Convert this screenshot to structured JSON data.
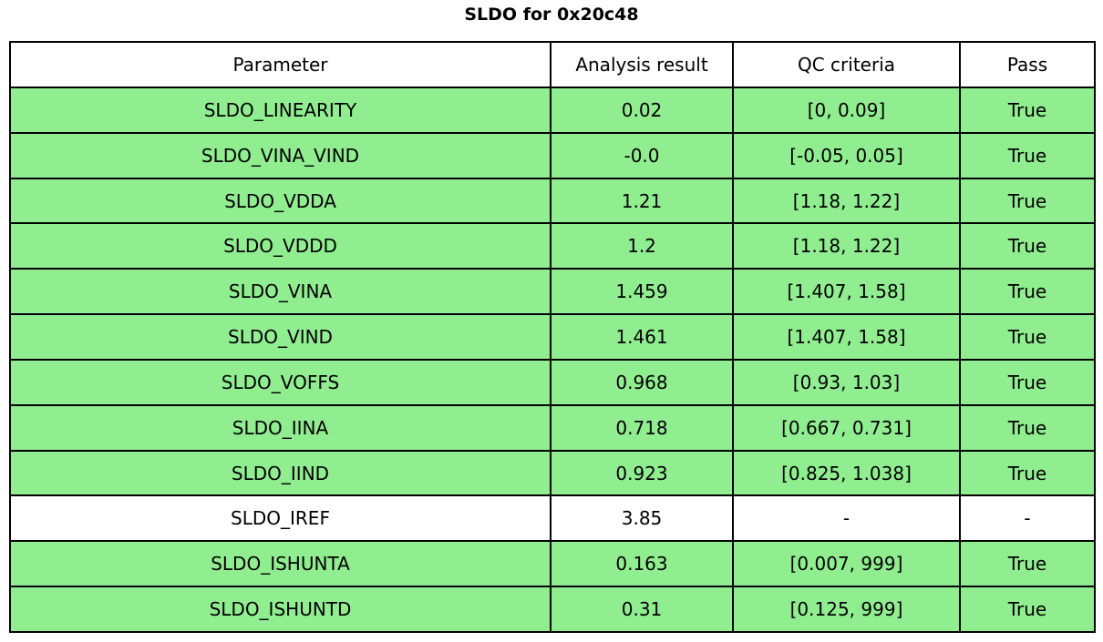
{
  "title": "SLDO for 0x20c48",
  "chart_data": {
    "type": "table",
    "title": "SLDO for 0x20c48",
    "columns": [
      "Parameter",
      "Analysis result",
      "QC criteria",
      "Pass"
    ],
    "rows": [
      {
        "parameter": "SLDO_LINEARITY",
        "result": "0.02",
        "qc": "[0, 0.09]",
        "pass": "True",
        "highlighted": true
      },
      {
        "parameter": "SLDO_VINA_VIND",
        "result": "-0.0",
        "qc": "[-0.05, 0.05]",
        "pass": "True",
        "highlighted": true
      },
      {
        "parameter": "SLDO_VDDA",
        "result": "1.21",
        "qc": "[1.18, 1.22]",
        "pass": "True",
        "highlighted": true
      },
      {
        "parameter": "SLDO_VDDD",
        "result": "1.2",
        "qc": "[1.18, 1.22]",
        "pass": "True",
        "highlighted": true
      },
      {
        "parameter": "SLDO_VINA",
        "result": "1.459",
        "qc": "[1.407, 1.58]",
        "pass": "True",
        "highlighted": true
      },
      {
        "parameter": "SLDO_VIND",
        "result": "1.461",
        "qc": "[1.407, 1.58]",
        "pass": "True",
        "highlighted": true
      },
      {
        "parameter": "SLDO_VOFFS",
        "result": "0.968",
        "qc": "[0.93, 1.03]",
        "pass": "True",
        "highlighted": true
      },
      {
        "parameter": "SLDO_IINA",
        "result": "0.718",
        "qc": "[0.667, 0.731]",
        "pass": "True",
        "highlighted": true
      },
      {
        "parameter": "SLDO_IIND",
        "result": "0.923",
        "qc": "[0.825, 1.038]",
        "pass": "True",
        "highlighted": true
      },
      {
        "parameter": "SLDO_IREF",
        "result": "3.85",
        "qc": "-",
        "pass": "-",
        "highlighted": false
      },
      {
        "parameter": "SLDO_ISHUNTA",
        "result": "0.163",
        "qc": "[0.007, 999]",
        "pass": "True",
        "highlighted": true
      },
      {
        "parameter": "SLDO_ISHUNTD",
        "result": "0.31",
        "qc": "[0.125, 999]",
        "pass": "True",
        "highlighted": true
      }
    ]
  },
  "colors": {
    "pass_row_bg": "#90EE90",
    "neutral_row_bg": "#FFFFFF",
    "border": "#000000",
    "text": "#000000"
  }
}
